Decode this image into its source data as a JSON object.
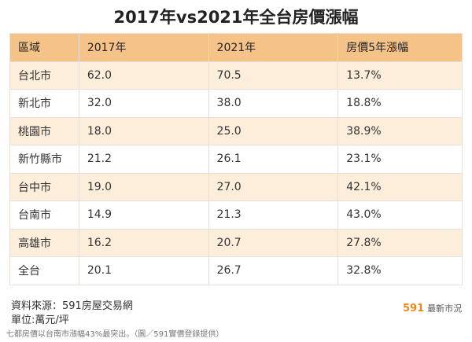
{
  "header": {
    "title": "2017年vs2021年全台房價漲幅"
  },
  "table": {
    "columns": [
      "區域",
      "2017年",
      "2021年",
      "房價5年漲幅"
    ],
    "rows": [
      [
        "台北市",
        "62.0",
        "70.5",
        "13.7%"
      ],
      [
        "新北市",
        "32.0",
        "38.0",
        "18.8%"
      ],
      [
        "桃園市",
        "18.0",
        "25.0",
        "38.9%"
      ],
      [
        "新竹縣市",
        "21.2",
        "26.1",
        "23.1%"
      ],
      [
        "台中市",
        "19.0",
        "27.0",
        "42.1%"
      ],
      [
        "台南市",
        "14.9",
        "21.3",
        "43.0%"
      ],
      [
        "高雄市",
        "16.2",
        "20.7",
        "27.8%"
      ],
      [
        "全台",
        "20.1",
        "26.7",
        "32.8%"
      ]
    ]
  },
  "footer": {
    "source": "資料來源：591房屋交易網",
    "unit": "單位:萬元/坪",
    "logo_number": "591",
    "logo_text": "最新市況"
  },
  "caption": "七都房價以台南市漲幅43%最突出。（圖／591實價登錄提供）"
}
